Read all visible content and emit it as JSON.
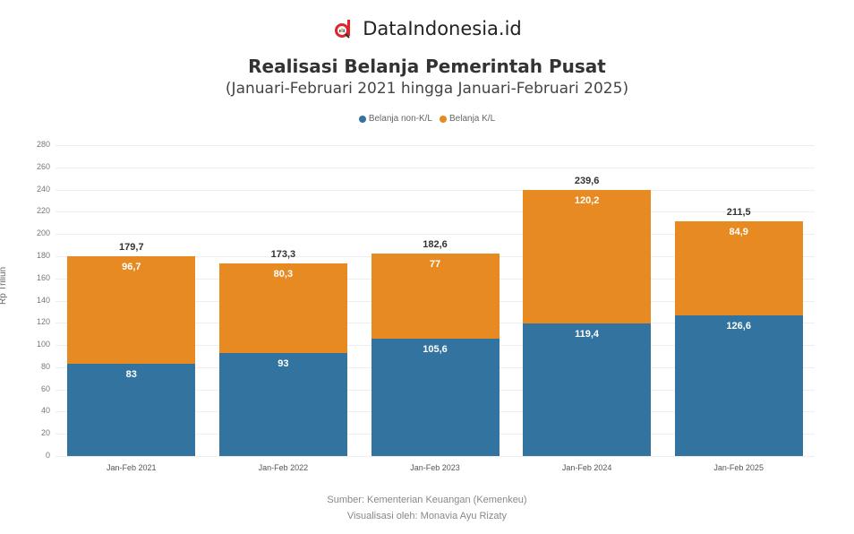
{
  "brand": {
    "name": "DataIndonesia.id",
    "icon": "dataindonesia-logo-icon"
  },
  "header": {
    "title": "Realisasi Belanja Pemerintah Pusat",
    "subtitle": "(Januari-Februari 2021 hingga Januari-Februari 2025)"
  },
  "legend": [
    {
      "label": "Belanja non-K/L",
      "color": "#32739f"
    },
    {
      "label": "Belanja K/L",
      "color": "#e68a21"
    }
  ],
  "footer": {
    "source": "Sumber: Kementerian Keuangan (Kemenkeu)",
    "credit": "Visualisasi oleh: Monavia Ayu Rizaty"
  },
  "chart_data": {
    "type": "bar",
    "stacked": true,
    "title": "Realisasi Belanja Pemerintah Pusat",
    "subtitle": "(Januari-Februari 2021 hingga Januari-Februari 2025)",
    "xlabel": "",
    "ylabel": "Rp Triliun",
    "ylim": [
      0,
      280
    ],
    "yticks": [
      0,
      20,
      40,
      60,
      80,
      100,
      120,
      140,
      160,
      180,
      200,
      220,
      240,
      260,
      280
    ],
    "grid": true,
    "legend_position": "top",
    "categories": [
      "Jan-Feb 2021",
      "Jan-Feb 2022",
      "Jan-Feb 2023",
      "Jan-Feb 2024",
      "Jan-Feb 2025"
    ],
    "series": [
      {
        "name": "Belanja non-K/L",
        "color": "#32739f",
        "values": [
          83.0,
          93.0,
          105.6,
          119.4,
          126.6
        ]
      },
      {
        "name": "Belanja K/L",
        "color": "#e68a21",
        "values": [
          96.7,
          80.3,
          77.0,
          120.2,
          84.9
        ]
      }
    ],
    "totals": [
      179.7,
      173.3,
      182.6,
      239.6,
      211.5
    ],
    "total_labels": [
      "179,7",
      "173,3",
      "182,6",
      "239,6",
      "211,5"
    ]
  }
}
